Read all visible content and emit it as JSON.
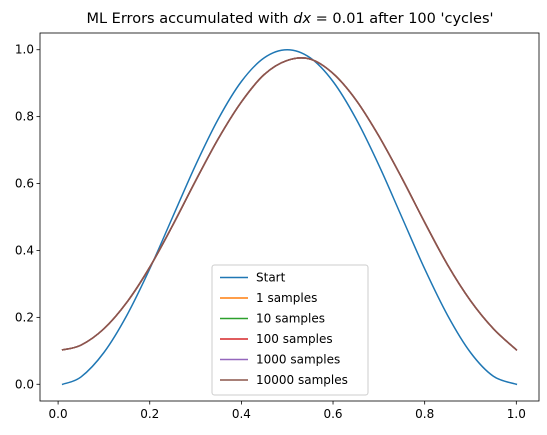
{
  "chart_data": {
    "type": "line",
    "title": "ML Errors accumulated with dx = 0.01 after 100 'cycles'",
    "title_parts": {
      "before": "ML Errors accumulated with ",
      "math_var": "dx",
      "after": " = 0.01 after 100 'cycles'"
    },
    "xlabel": "",
    "ylabel": "",
    "xlim": [
      -0.0395,
      1.0495
    ],
    "ylim": [
      -0.05,
      1.05
    ],
    "x_ticks": [
      "0.0",
      "0.2",
      "0.4",
      "0.6",
      "0.8",
      "1.0"
    ],
    "y_ticks": [
      "0.0",
      "0.2",
      "0.4",
      "0.6",
      "0.8",
      "1.0"
    ],
    "grid": false,
    "legend_position": "lower center",
    "x": [
      0.01,
      0.05,
      0.1,
      0.15,
      0.2,
      0.25,
      0.3,
      0.35,
      0.4,
      0.45,
      0.5,
      0.55,
      0.6,
      0.65,
      0.7,
      0.75,
      0.8,
      0.85,
      0.9,
      0.95,
      1.0
    ],
    "series": [
      {
        "name": "Start",
        "color": "#1f77b4",
        "values": [
          0.0,
          0.022,
          0.095,
          0.206,
          0.345,
          0.5,
          0.655,
          0.794,
          0.905,
          0.976,
          1.0,
          0.976,
          0.905,
          0.794,
          0.655,
          0.5,
          0.345,
          0.206,
          0.095,
          0.024,
          0.0
        ]
      },
      {
        "name": "1 samples",
        "color": "#ff7f0e",
        "values": [
          0.103,
          0.117,
          0.166,
          0.245,
          0.35,
          0.475,
          0.608,
          0.735,
          0.844,
          0.926,
          0.968,
          0.972,
          0.929,
          0.85,
          0.742,
          0.617,
          0.484,
          0.357,
          0.25,
          0.166,
          0.103
        ]
      },
      {
        "name": "10 samples",
        "color": "#2ca02c",
        "values": [
          0.103,
          0.117,
          0.166,
          0.245,
          0.35,
          0.475,
          0.608,
          0.735,
          0.844,
          0.926,
          0.968,
          0.972,
          0.929,
          0.85,
          0.742,
          0.617,
          0.484,
          0.357,
          0.25,
          0.166,
          0.103
        ]
      },
      {
        "name": "100 samples",
        "color": "#d62728",
        "values": [
          0.103,
          0.117,
          0.166,
          0.245,
          0.35,
          0.475,
          0.608,
          0.735,
          0.844,
          0.926,
          0.968,
          0.972,
          0.929,
          0.85,
          0.742,
          0.617,
          0.484,
          0.357,
          0.25,
          0.166,
          0.103
        ]
      },
      {
        "name": "1000 samples",
        "color": "#9467bd",
        "values": [
          0.103,
          0.117,
          0.166,
          0.245,
          0.35,
          0.475,
          0.608,
          0.735,
          0.844,
          0.926,
          0.968,
          0.972,
          0.929,
          0.85,
          0.742,
          0.617,
          0.484,
          0.357,
          0.25,
          0.166,
          0.103
        ]
      },
      {
        "name": "10000 samples",
        "color": "#8c564b",
        "values": [
          0.103,
          0.117,
          0.166,
          0.245,
          0.35,
          0.475,
          0.608,
          0.735,
          0.844,
          0.926,
          0.968,
          0.972,
          0.929,
          0.85,
          0.742,
          0.617,
          0.484,
          0.357,
          0.25,
          0.166,
          0.103
        ]
      }
    ]
  }
}
